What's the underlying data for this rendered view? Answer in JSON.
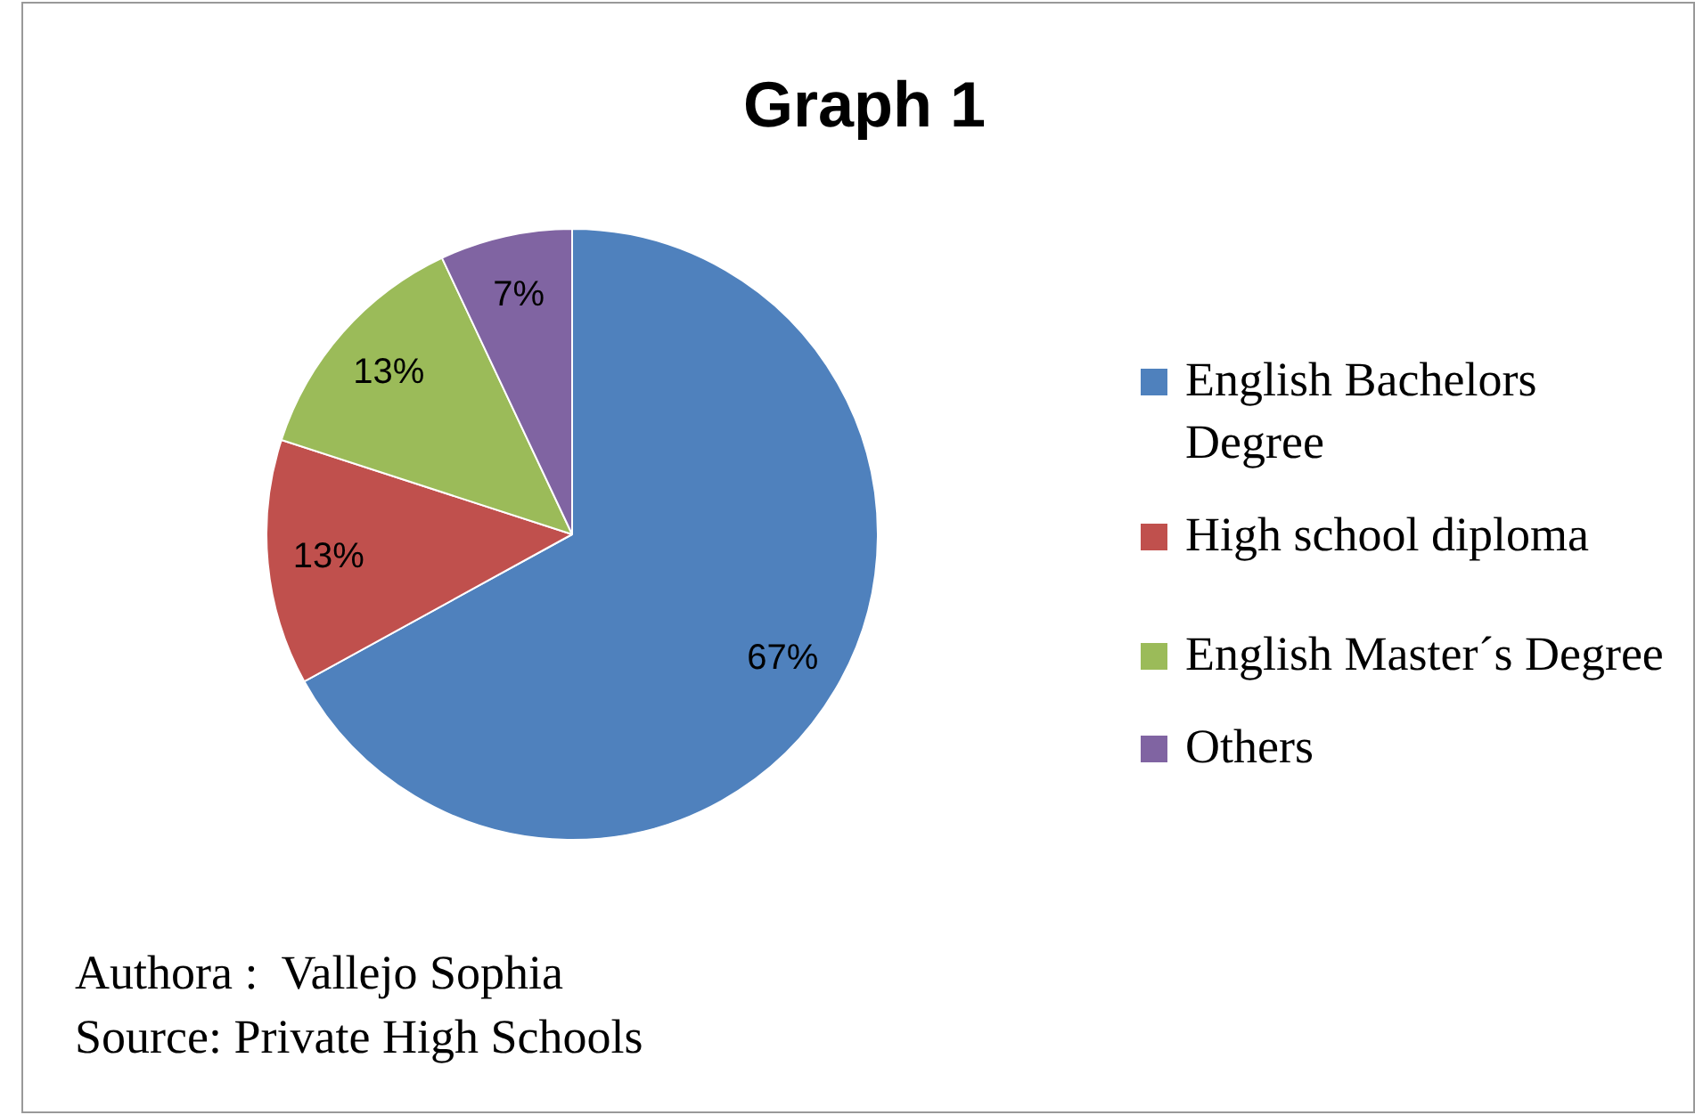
{
  "chart_data": {
    "type": "pie",
    "title": "Graph 1",
    "categories": [
      "English Bachelors Degree",
      "High school diploma",
      "English Master´s Degree",
      "Others"
    ],
    "values": [
      67,
      13,
      13,
      7
    ],
    "value_labels": [
      "67%",
      "13%",
      "13%",
      "7%"
    ],
    "colors": [
      "#4f81bd",
      "#c0504d",
      "#9bbb59",
      "#8064a2"
    ],
    "legend": "right",
    "annotations": [
      "Authora :  Vallejo Sophia",
      "Source: Private High Schools"
    ]
  }
}
